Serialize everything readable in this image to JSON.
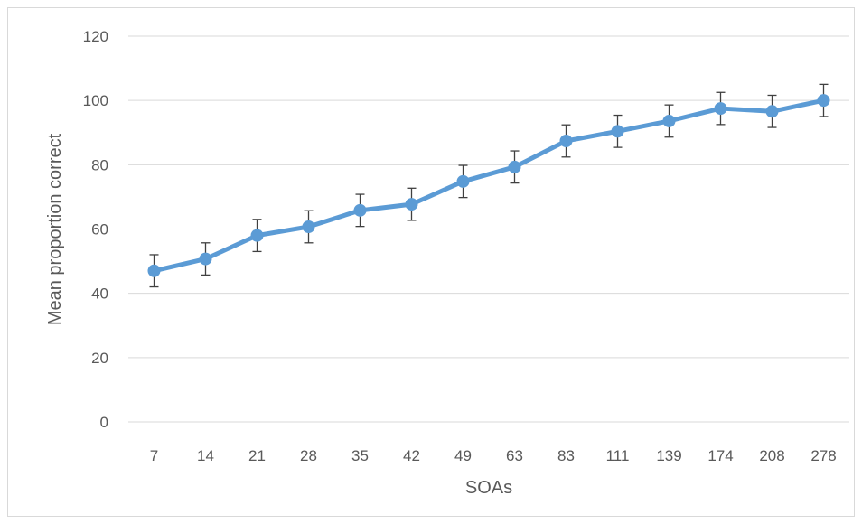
{
  "chart_data": {
    "type": "line",
    "title": "",
    "xlabel": "SOAs",
    "ylabel": "Mean proportion correct",
    "categories": [
      "7",
      "14",
      "21",
      "28",
      "35",
      "42",
      "49",
      "63",
      "83",
      "111",
      "139",
      "174",
      "208",
      "278"
    ],
    "series": [
      {
        "values": [
          47,
          50.7,
          58,
          60.7,
          65.8,
          67.7,
          74.8,
          79.3,
          87.4,
          90.4,
          93.6,
          97.5,
          96.6,
          100
        ],
        "error": [
          5,
          5,
          5,
          5,
          5,
          5,
          5,
          5,
          5,
          5,
          5,
          5,
          5,
          5
        ],
        "color": "#5b9bd5"
      }
    ],
    "ylim": [
      0,
      120
    ],
    "yticks": [
      0,
      20,
      40,
      60,
      80,
      100,
      120
    ],
    "grid": true,
    "gridColor": "#d9d9d9",
    "errorBarColor": "#404040"
  }
}
